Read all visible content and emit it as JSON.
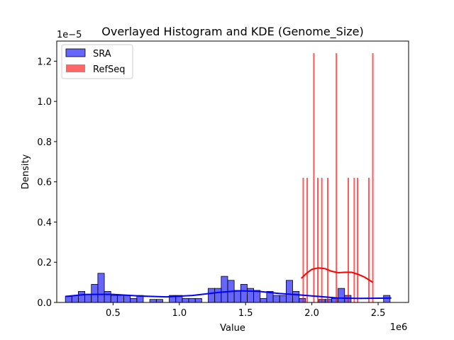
{
  "chart_data": {
    "type": "bar",
    "title": "Overlayed Histogram and KDE (Genome_Size)",
    "xlabel": "Value",
    "ylabel": "Density",
    "x_multiplier_label": "1e6",
    "y_multiplier_label": "1e−5",
    "xlim": [
      75000,
      2730000
    ],
    "ylim": [
      0,
      1.3
    ],
    "x_ticks": [
      500000,
      1000000,
      1500000,
      2000000,
      2500000
    ],
    "x_tick_labels": [
      "0.5",
      "1.0",
      "1.5",
      "2.0",
      "2.5"
    ],
    "y_ticks": [
      0,
      0.2,
      0.4,
      0.6,
      0.8,
      1.0,
      1.2
    ],
    "y_tick_labels": [
      "0.0",
      "0.2",
      "0.4",
      "0.6",
      "0.8",
      "1.0",
      "1.2"
    ],
    "grid": false,
    "legend_position": "top-left",
    "series": [
      {
        "name": "SRA",
        "color": "#0000ff",
        "bin_start": 140000,
        "bin_width": 49000,
        "values": [
          0.03,
          0.035,
          0.055,
          0.04,
          0.09,
          0.145,
          0.055,
          0.035,
          0.035,
          0.035,
          0.02,
          0.035,
          0,
          0.015,
          0.015,
          0,
          0.035,
          0.035,
          0.02,
          0.02,
          0.02,
          0,
          0.07,
          0.07,
          0.13,
          0.11,
          0.06,
          0.09,
          0.07,
          0.06,
          0.02,
          0.055,
          0.035,
          0.035,
          0.11,
          0.055,
          0.02,
          0,
          0,
          0.015,
          0.015,
          0.02,
          0.07,
          0.035,
          0,
          0,
          0,
          0,
          0,
          0.035
        ],
        "kde_x": [
          140000,
          300000,
          500000,
          700000,
          900000,
          1100000,
          1300000,
          1450000,
          1600000,
          1750000,
          1900000,
          2050000,
          2200000,
          2350000,
          2500000,
          2600000
        ],
        "kde_y": [
          0.03,
          0.04,
          0.04,
          0.032,
          0.028,
          0.035,
          0.05,
          0.058,
          0.055,
          0.045,
          0.038,
          0.03,
          0.022,
          0.02,
          0.021,
          0.022
        ]
      },
      {
        "name": "RefSeq",
        "color": "#ff0000",
        "bar_x": [
          1935000,
          1965000,
          2015000,
          2045000,
          2075000,
          2120000,
          2185000,
          2275000,
          2320000,
          2345000,
          2430000,
          2460000
        ],
        "values": [
          0.62,
          0.62,
          1.24,
          0.62,
          0.62,
          0.62,
          1.24,
          0.62,
          0.62,
          0.62,
          0.62,
          1.24
        ],
        "kde_x": [
          1920000,
          1960000,
          2000000,
          2050000,
          2100000,
          2150000,
          2200000,
          2250000,
          2300000,
          2350000,
          2400000,
          2460000
        ],
        "kde_y": [
          0.12,
          0.145,
          0.165,
          0.172,
          0.168,
          0.155,
          0.148,
          0.15,
          0.15,
          0.14,
          0.125,
          0.1
        ]
      }
    ]
  }
}
